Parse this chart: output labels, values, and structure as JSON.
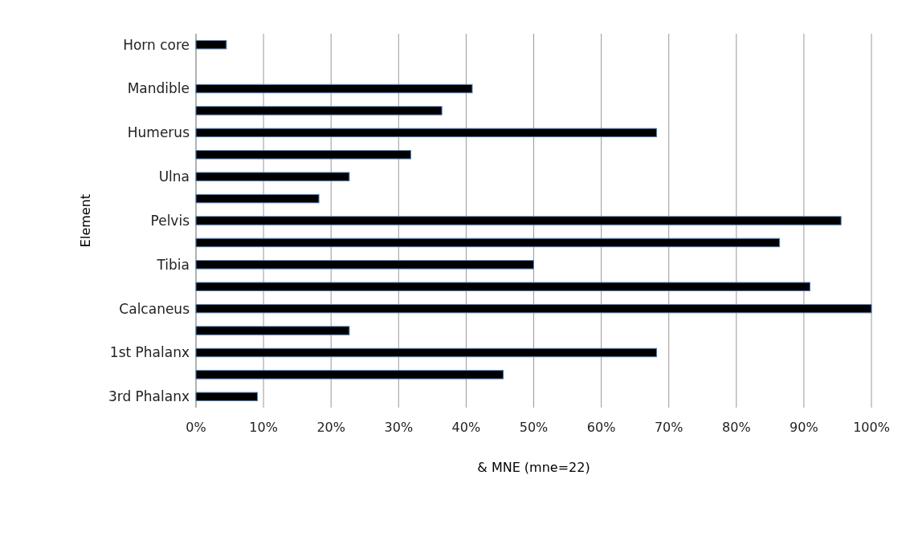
{
  "chart_data": {
    "type": "bar",
    "orientation": "horizontal",
    "xlabel": "& MNE (mne=22)",
    "ylabel": "Element",
    "categories": [
      "Horn core",
      null,
      "Mandible",
      null,
      "Humerus",
      null,
      "Ulna",
      null,
      "Pelvis",
      null,
      "Tibia",
      null,
      "Calcaneus",
      null,
      "1st Phalanx",
      null,
      "3rd Phalanx"
    ],
    "values": [
      4.5,
      null,
      40.9,
      36.4,
      68.2,
      31.8,
      22.7,
      18.2,
      95.5,
      86.4,
      50,
      90.9,
      100,
      22.7,
      68.2,
      45.5,
      9.1
    ],
    "color": "#000000",
    "xlim": [
      0,
      100
    ],
    "xticks": [
      {
        "value": 0,
        "label": "0%"
      },
      {
        "value": 10,
        "label": "10%"
      },
      {
        "value": 20,
        "label": "20%"
      },
      {
        "value": 30,
        "label": "30%"
      },
      {
        "value": 40,
        "label": "40%"
      },
      {
        "value": 50,
        "label": "50%"
      },
      {
        "value": 60,
        "label": "60%"
      },
      {
        "value": 70,
        "label": "70%"
      },
      {
        "value": 80,
        "label": "80%"
      },
      {
        "value": 90,
        "label": "90%"
      },
      {
        "value": 100,
        "label": "100%"
      }
    ],
    "grid": "x"
  }
}
